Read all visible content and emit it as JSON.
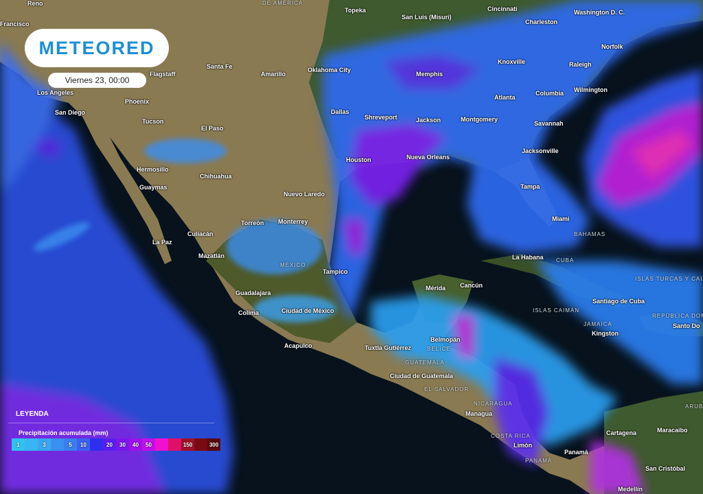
{
  "brand": {
    "logo": "METEORED",
    "datetime": "Viernes 23, 00:00"
  },
  "legend": {
    "title": "LEYENDA",
    "subtitle": "Precipitación acumulada (mm)",
    "scale": [
      {
        "label": "1",
        "color": "#2ec3f0"
      },
      {
        "label": "",
        "color": "#38b6f2"
      },
      {
        "label": "3",
        "color": "#3aa6f0"
      },
      {
        "label": "",
        "color": "#3a90ee"
      },
      {
        "label": "5",
        "color": "#3a7ff0"
      },
      {
        "label": "10",
        "color": "#3c60f0"
      },
      {
        "label": "",
        "color": "#2f2ef0"
      },
      {
        "label": "20",
        "color": "#5a1ef0"
      },
      {
        "label": "30",
        "color": "#7a16ee"
      },
      {
        "label": "40",
        "color": "#a010ec"
      },
      {
        "label": "50",
        "color": "#c010ea"
      },
      {
        "label": "",
        "color": "#f010d0"
      },
      {
        "label": "",
        "color": "#e0106a"
      },
      {
        "label": "150",
        "color": "#a0102a"
      },
      {
        "label": "",
        "color": "#7a0a12"
      },
      {
        "label": "300",
        "color": "#5a080c"
      }
    ]
  },
  "cities": [
    "Reno",
    "Topeka",
    "San Luis (Misuri)",
    "Cincinnati",
    "Washington D. C.",
    "Charleston",
    "Norfolk",
    "Raleigh",
    "Wilmington",
    "Knoxville",
    "Memphis",
    "Oklahoma City",
    "Santa Fe",
    "Amarillo",
    "Atlanta",
    "Columbia",
    "Savannah",
    "Dallas",
    "Shreveport",
    "Jackson",
    "Montgomery",
    "Jacksonville",
    "Houston",
    "Nueva Orleans",
    "Tampa",
    "Miami",
    "Los Angeles",
    "San Diego",
    "Phoenix",
    "Tucson",
    "El Paso",
    "Hermosillo",
    "Chihuahua",
    "Guaymas",
    "Nuevo Laredo",
    "Monterrey",
    "Torreón",
    "Culiacán",
    "La Paz",
    "Mazatlán",
    "Tampico",
    "Guadalajara",
    "Colima",
    "Ciudad de México",
    "Acapulco",
    "Tuxtla Gutiérrez",
    "Mérida",
    "Cancún",
    "Belmopán",
    "Ciudad de Guatemala",
    "Managua",
    "Limón",
    "Panamá",
    "Cartagena",
    "Maracaibo",
    "San Cristóbal",
    "Medellín",
    "La Habana",
    "Santiago de Cuba",
    "Kingston",
    "Santo Do",
    "Flagstaff",
    "Francisco"
  ],
  "regions": [
    "DE AMÉRICA",
    "MÉXICO",
    "BELICE",
    "GUATEMALA",
    "EL SALVADOR",
    "NICARAGUA",
    "COSTA RICA",
    "PANAMÁ",
    "BAHAMAS",
    "ISLAS CAIMÁN",
    "ISLAS TURCAS Y CAI",
    "REPÚBLICA DOM",
    "JAMAICA",
    "ARUBA",
    "CUBA"
  ]
}
